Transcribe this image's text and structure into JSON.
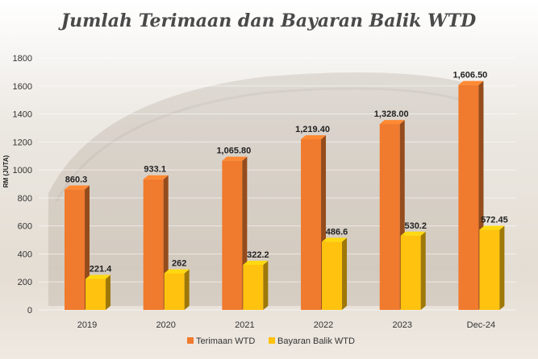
{
  "chart_data": {
    "type": "bar",
    "title": "Jumlah Terimaan dan Bayaran Balik WTD",
    "ylabel": "RM (JUTA)",
    "xlabel": "",
    "ylim": [
      0,
      1800
    ],
    "ytick_step": 200,
    "grid": true,
    "legend_position": "bottom",
    "categories": [
      "2019",
      "2020",
      "2021",
      "2022",
      "2023",
      "Dec-24"
    ],
    "series": [
      {
        "name": "Terimaan WTD",
        "color": "#f07a2d",
        "values": [
          860.3,
          933.1,
          1065.8,
          1219.4,
          1328.0,
          1606.5
        ],
        "labels": [
          "860.3",
          "933.1",
          "1,065.80",
          "1,219.40",
          "1,328.00",
          "1,606.50"
        ]
      },
      {
        "name": "Bayaran Balik WTD",
        "color": "#ffc20e",
        "values": [
          221.4,
          262,
          322.2,
          486.6,
          530.2,
          572.45
        ],
        "labels": [
          "221.4",
          "262",
          "322.2",
          "486.6",
          "530.2",
          "572.45"
        ]
      }
    ]
  }
}
